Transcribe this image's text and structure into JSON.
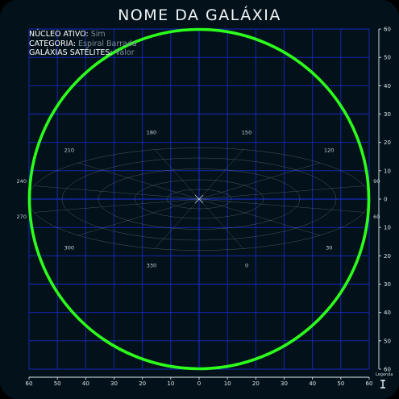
{
  "title": "NOME DA GALÁXIA",
  "info": [
    {
      "key": "NÚCLEO ATIVO:",
      "value": "Sim"
    },
    {
      "key": "CATEGORIA:",
      "value": "Espiral Barrada"
    },
    {
      "key": "GALÁXIAS SATÉLITES:",
      "value": "Valor"
    }
  ],
  "x_ticks": [
    "60",
    "50",
    "40",
    "30",
    "20",
    "10",
    "0",
    "10",
    "20",
    "30",
    "40",
    "50",
    "60"
  ],
  "y_ticks": [
    "60",
    "50",
    "40",
    "30",
    "20",
    "10",
    "0",
    "10",
    "20",
    "30",
    "40",
    "50",
    "60"
  ],
  "angle_labels": [
    "180",
    "150",
    "120",
    "90",
    "60",
    "30",
    "0",
    "330",
    "300",
    "270",
    "240",
    "210"
  ],
  "legend_label": "Legenda",
  "colors": {
    "ring": "#2cff1c",
    "grid": "#1a2bd0",
    "polar": "#7f8f98",
    "bg": "#03121a"
  }
}
